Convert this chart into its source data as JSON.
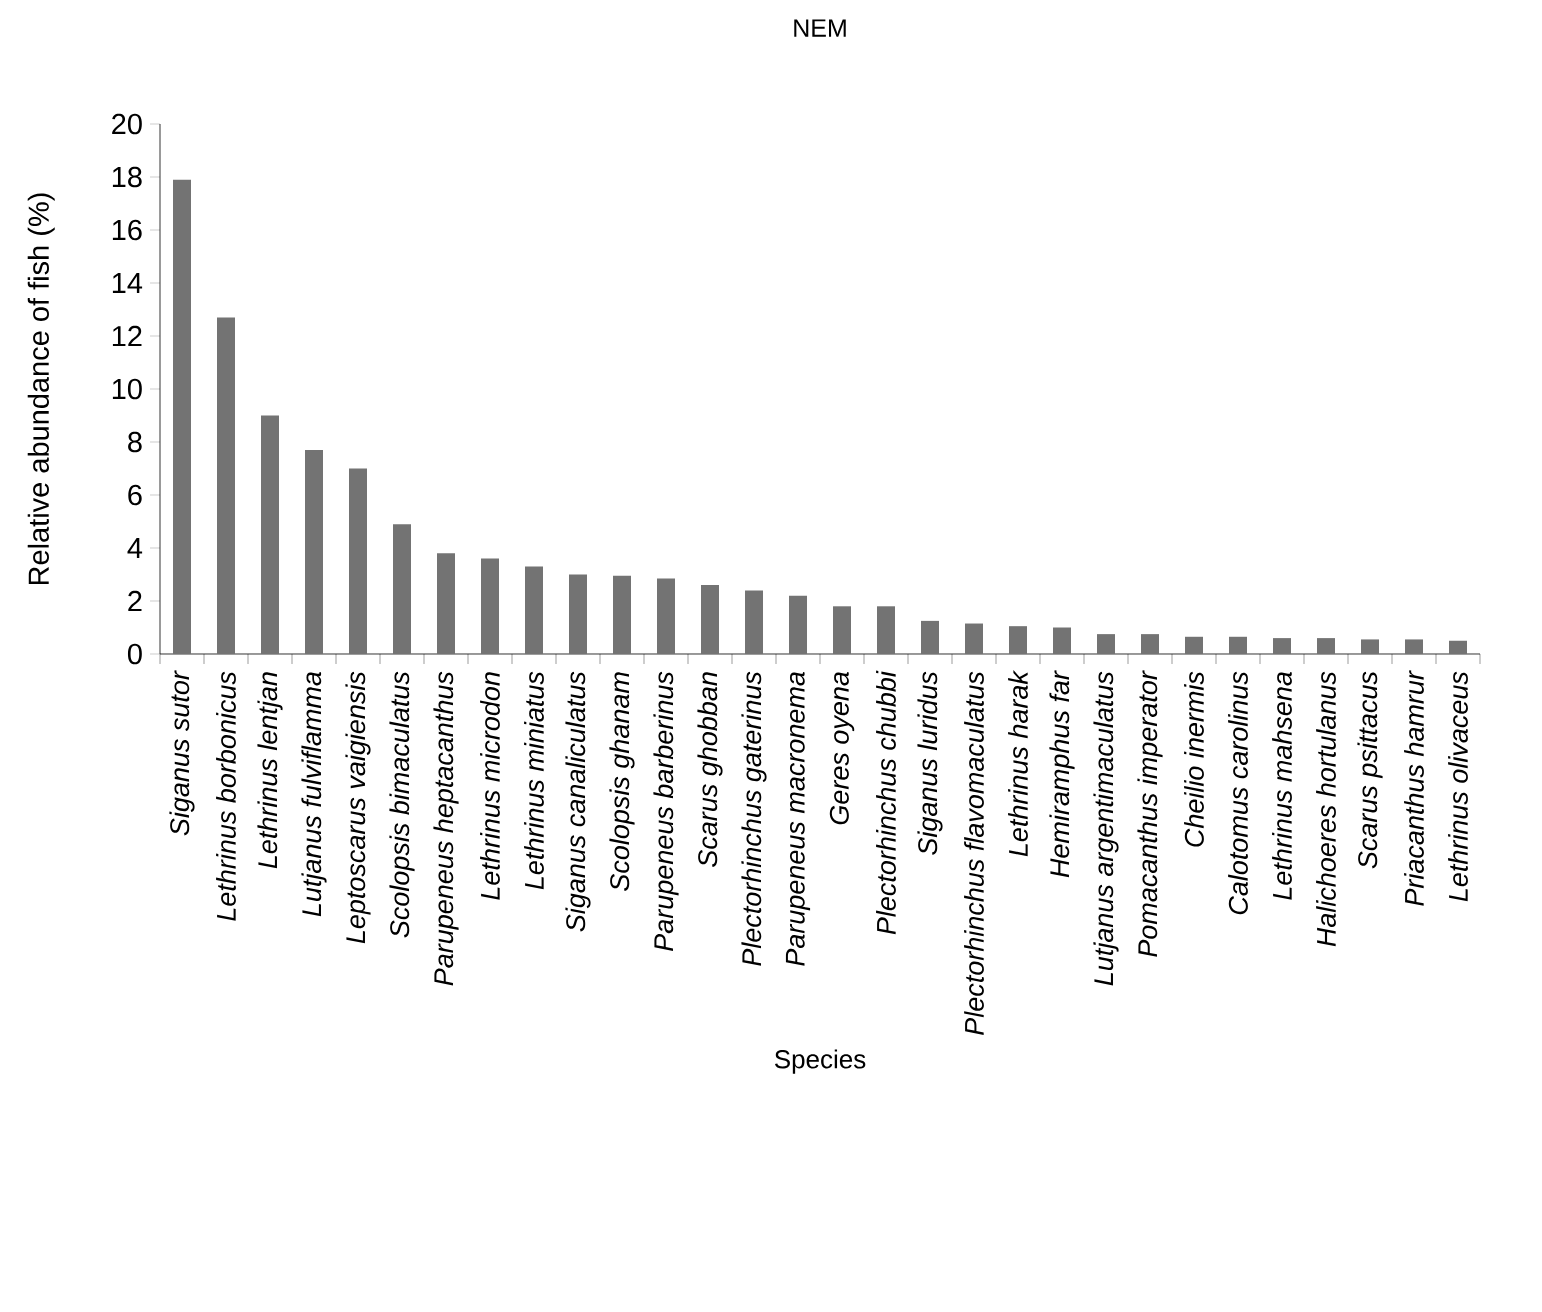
{
  "chart_data": {
    "type": "bar",
    "title": "NEM",
    "xlabel": "Species",
    "ylabel": "Relative  abundance of fish (%)",
    "categories": [
      "Siganus sutor",
      "Lethrinus borbonicus",
      "Lethrinus lentjan",
      "Lutjanus fulviflamma",
      "Leptoscarus vaigiensis",
      "Scolopsis bimaculatus",
      "Parupeneus heptacanthus",
      "Lethrinus microdon",
      "Lethrinus miniatus",
      "Siganus canaliculatus",
      "Scolopsis  ghanam",
      "Parupeneus barberinus",
      "Scarus  ghobban",
      "Plectorhinchus gaterinus",
      "Parupeneus macronema",
      "Geres oyena",
      "Plectorhinchus chubbi",
      "Siganus luridus",
      "Plectorhinchus  flavomaculatus",
      "Lethrinus harak",
      "Hemiramphus far",
      "Lutjanus argentimaculatus",
      "Pomacanthus imperator",
      "Cheilio inermis",
      "Calotomus carolinus",
      "Lethrinus mahsena",
      "Halichoeres hortulanus",
      "Scarus psittacus",
      "Priacanthus hamrur",
      "Lethrinus olivaceus"
    ],
    "values": [
      17.9,
      12.7,
      9.0,
      7.7,
      7.0,
      4.9,
      3.8,
      3.6,
      3.3,
      3.0,
      2.95,
      2.85,
      2.6,
      2.4,
      2.2,
      1.8,
      1.8,
      1.25,
      1.15,
      1.05,
      1.0,
      0.75,
      0.75,
      0.65,
      0.65,
      0.6,
      0.6,
      0.55,
      0.55,
      0.5
    ],
    "color": "#737373",
    "ylim": [
      0,
      20
    ],
    "yticks": [
      0,
      2,
      4,
      6,
      8,
      10,
      12,
      14,
      16,
      18,
      20
    ]
  }
}
